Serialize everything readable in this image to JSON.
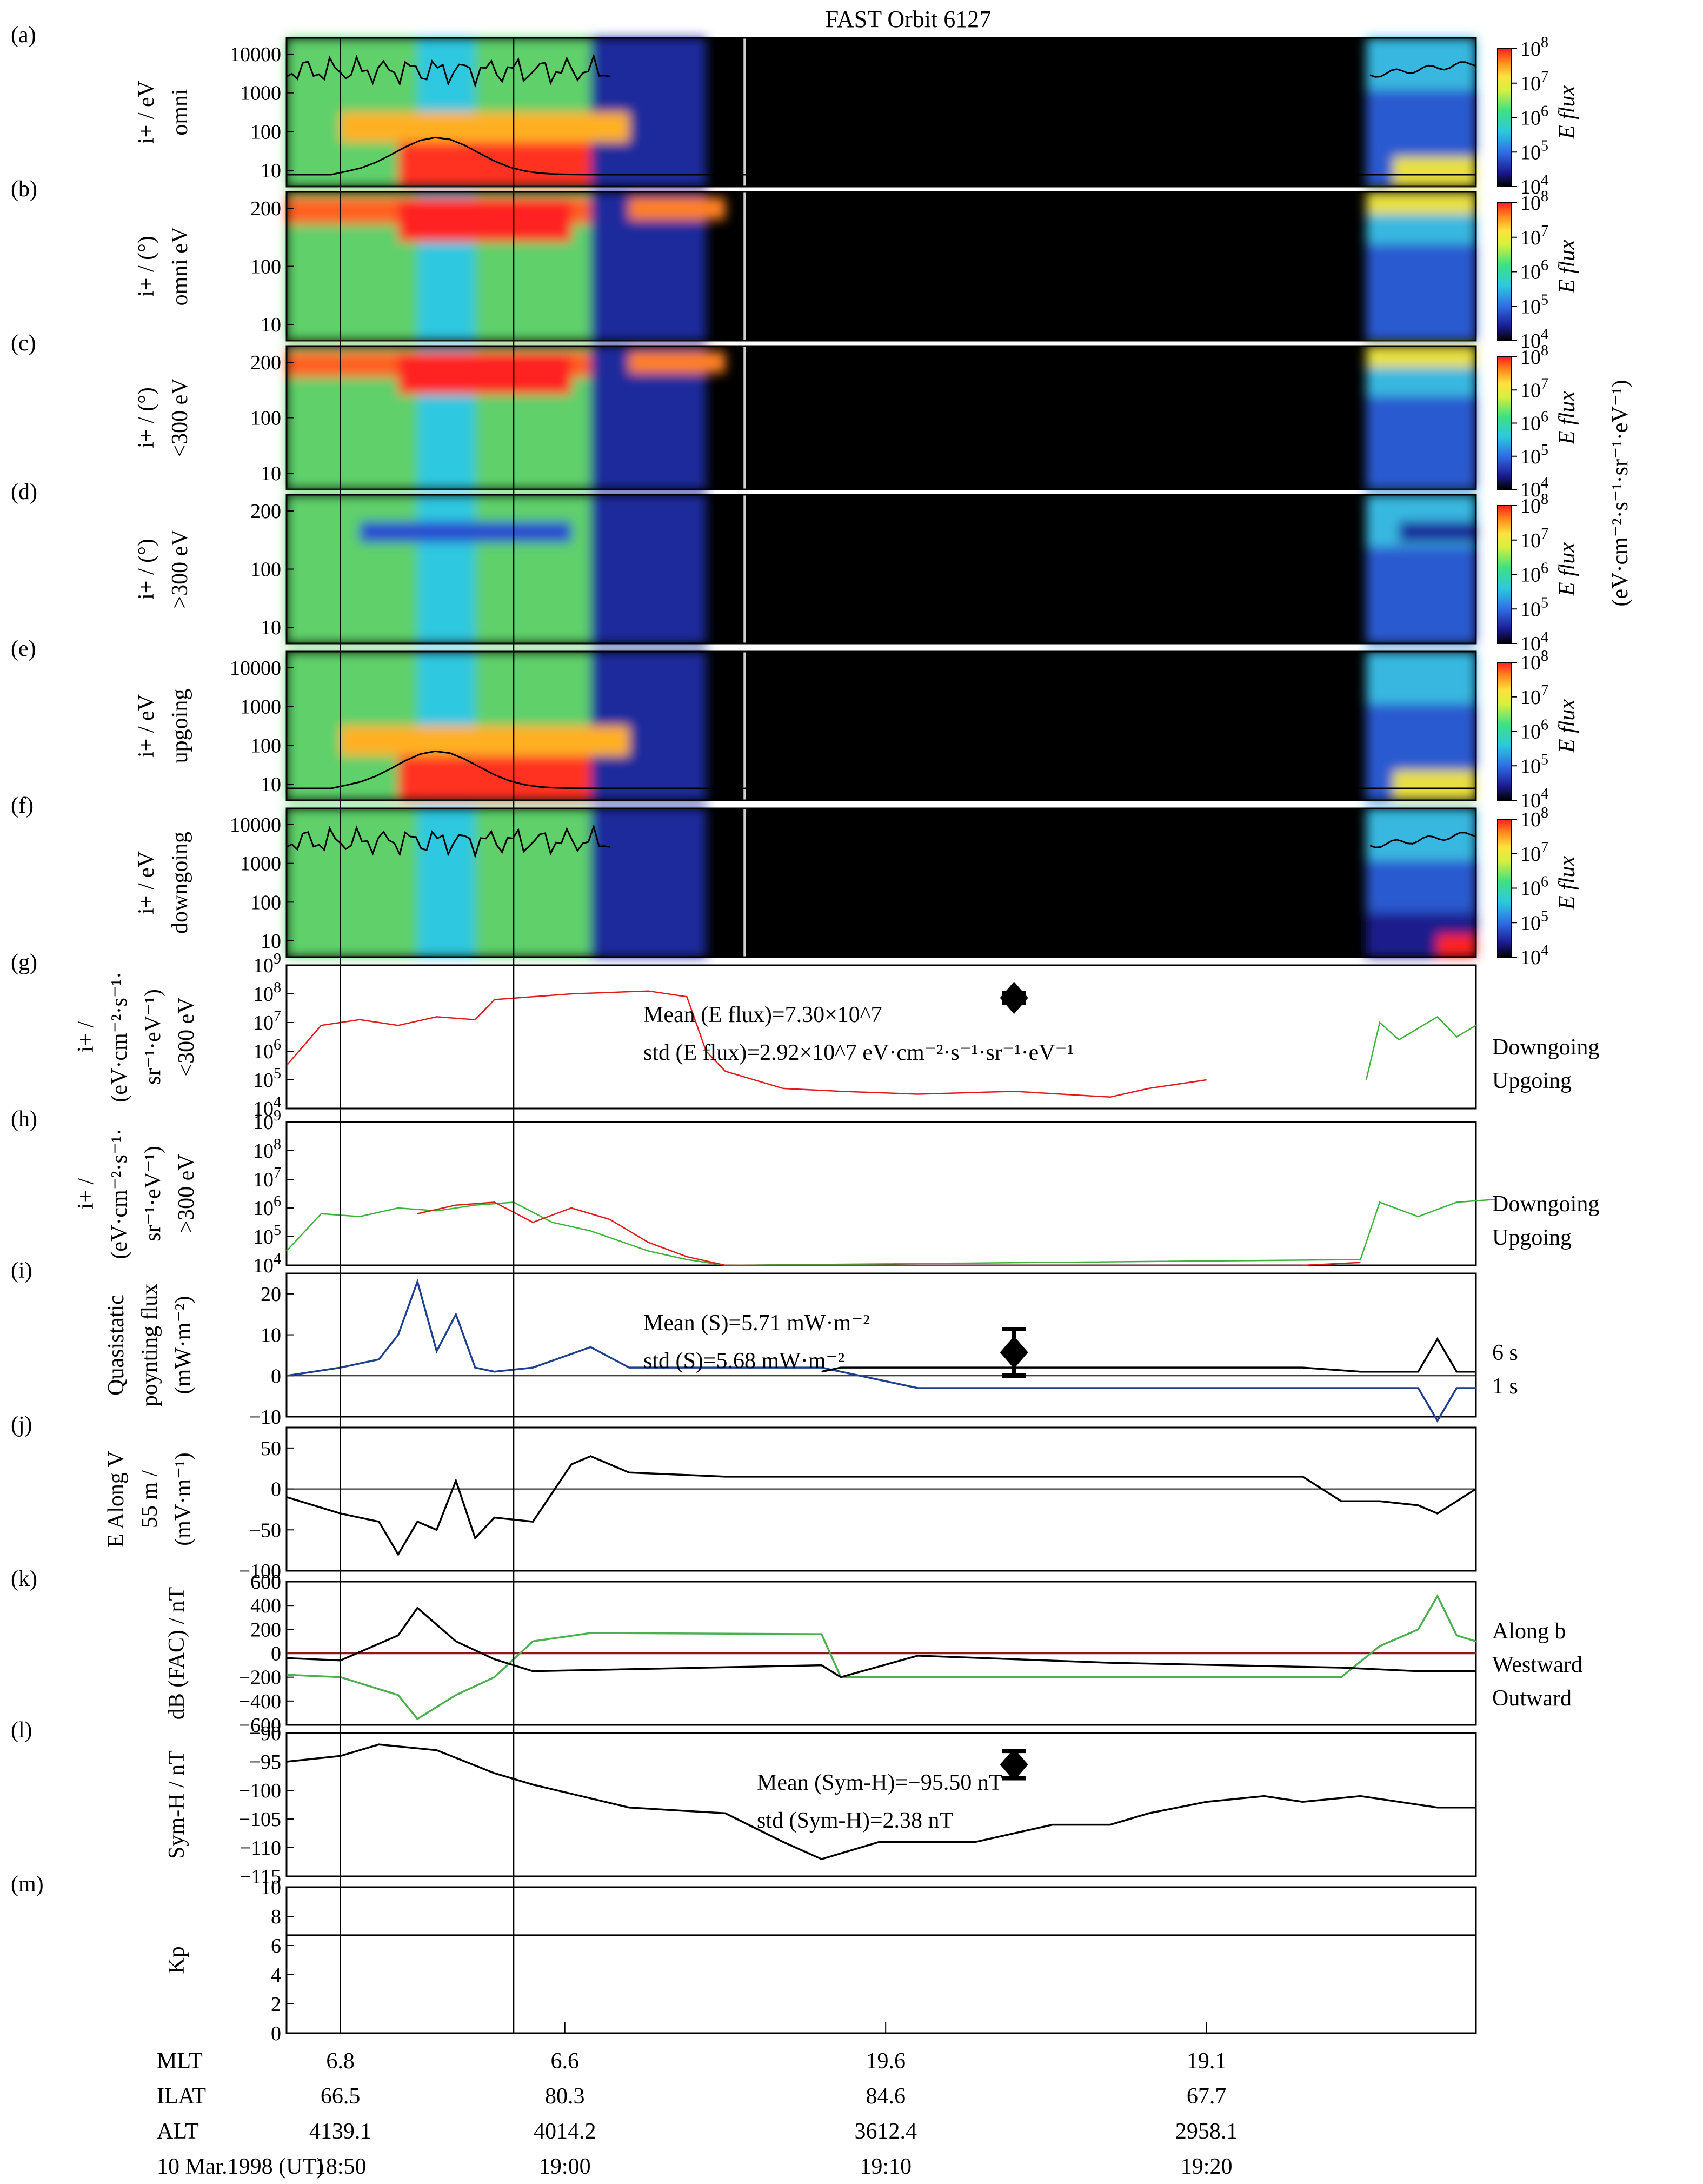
{
  "title": "FAST Orbit 6127",
  "colors": {
    "upgoing": "#e31a1c",
    "downgoing": "#3cb43c",
    "along_b": "#8b1a1a",
    "westward": "#4caf50",
    "outward": "#000000",
    "s6": "#1f3f8f",
    "s1": "#000000",
    "spectro_low": "#000000",
    "spectro_high": "#ff0000"
  },
  "colorbar": {
    "labels": [
      "10^4",
      "10^5",
      "10^6",
      "10^7",
      "10^8"
    ],
    "label": "E flux",
    "units": "(eV·cm⁻²·s⁻¹·sr⁻¹·eV⁻¹)",
    "colors": [
      "#000000",
      "#1a1a8c",
      "#2f6fe0",
      "#2fc8e0",
      "#40e080",
      "#d8f040",
      "#ffe040",
      "#ff8c20",
      "#ff2020"
    ]
  },
  "chart_data": [
    {
      "panel": "(a)",
      "type": "heatmap",
      "ylabel": [
        "i+ / eV",
        "omni"
      ],
      "yticks": [
        "10000",
        "1000",
        "100",
        "10"
      ],
      "colorbar_label": "E flux"
    },
    {
      "panel": "(b)",
      "type": "heatmap",
      "ylabel": [
        "i+ / (°)",
        "omni  eV"
      ],
      "yticks": [
        "200",
        "100",
        "10"
      ],
      "colorbar_label": "E flux"
    },
    {
      "panel": "(c)",
      "type": "heatmap",
      "ylabel": [
        "i+ / (°)",
        "<300 eV"
      ],
      "yticks": [
        "200",
        "100",
        "10"
      ],
      "colorbar_label": "E flux"
    },
    {
      "panel": "(d)",
      "type": "heatmap",
      "ylabel": [
        "i+ / (°)",
        ">300 eV"
      ],
      "yticks": [
        "200",
        "100",
        "10"
      ],
      "colorbar_label": "E flux"
    },
    {
      "panel": "(e)",
      "type": "heatmap",
      "ylabel": [
        "i+ / eV",
        "upgoing"
      ],
      "yticks": [
        "10000",
        "1000",
        "100",
        "10"
      ],
      "colorbar_label": "E flux"
    },
    {
      "panel": "(f)",
      "type": "heatmap",
      "ylabel": [
        "i+ / eV",
        "downgoing"
      ],
      "yticks": [
        "10000",
        "1000",
        "100",
        "10"
      ],
      "colorbar_label": "E flux"
    },
    {
      "panel": "(g)",
      "type": "line",
      "ylabel": [
        "i+ /",
        "(eV·cm⁻²·s⁻¹·",
        "sr⁻¹·eV⁻¹)",
        "<300 eV"
      ],
      "ytick_labels": [
        "10^4",
        "10^5",
        "10^6",
        "10^7",
        "10^8",
        "10^9"
      ],
      "ylim": [
        4,
        9
      ],
      "yscale": "log",
      "annotations": [
        "Mean (E flux)=7.30×10^7",
        "std (E flux)=2.92×10^7 eV·cm⁻²·s⁻¹·sr⁻¹·eV⁻¹"
      ],
      "mean_marker": {
        "x": 19.15,
        "y": 7.86,
        "err": 0.17
      },
      "legend": [
        "Downgoing",
        "Upgoing"
      ],
      "series": [
        {
          "name": "Upgoing",
          "x": [
            18.772,
            18.79,
            18.81,
            18.83,
            18.85,
            18.87,
            18.88,
            18.9,
            18.92,
            18.94,
            18.96,
            18.98,
            18.99,
            19.0,
            19.03,
            19.06,
            19.1,
            19.15,
            19.2,
            19.22,
            19.25
          ],
          "y": [
            5.5,
            6.9,
            7.1,
            6.9,
            7.2,
            7.1,
            7.8,
            7.9,
            8.0,
            8.05,
            8.1,
            7.9,
            6.0,
            5.3,
            4.7,
            4.6,
            4.5,
            4.6,
            4.4,
            4.7,
            5.0
          ]
        },
        {
          "name": "Downgoing",
          "x": [
            19.333,
            19.34,
            19.35,
            19.36,
            19.37,
            19.38,
            19.39
          ],
          "y": [
            5.0,
            7.0,
            6.4,
            6.8,
            7.2,
            6.5,
            6.9
          ]
        }
      ]
    },
    {
      "panel": "(h)",
      "type": "line",
      "ylabel": [
        "i+ /",
        "(eV·cm⁻²·s⁻¹·",
        "sr⁻¹·eV⁻¹)",
        ">300 eV"
      ],
      "ytick_labels": [
        "10^4",
        "10^5",
        "10^6",
        "10^7",
        "10^8",
        "10^9"
      ],
      "ylim": [
        4,
        9
      ],
      "yscale": "log",
      "legend": [
        "Downgoing",
        "Upgoing"
      ],
      "series": [
        {
          "name": "Downgoing",
          "x": [
            18.772,
            18.79,
            18.81,
            18.83,
            18.85,
            18.87,
            18.89,
            18.91,
            18.93,
            18.96,
            18.98,
            19.0,
            19.33,
            19.34,
            19.36,
            19.38,
            19.4
          ],
          "y": [
            4.5,
            5.8,
            5.7,
            6.0,
            5.9,
            6.1,
            6.2,
            5.5,
            5.2,
            4.5,
            4.2,
            4.0,
            4.2,
            6.2,
            5.7,
            6.2,
            6.3
          ]
        },
        {
          "name": "Upgoing",
          "x": [
            18.84,
            18.86,
            18.88,
            18.9,
            18.92,
            18.94,
            18.96,
            18.98,
            19.0,
            19.3,
            19.33
          ],
          "y": [
            5.8,
            6.1,
            6.2,
            5.5,
            6.0,
            5.6,
            4.8,
            4.3,
            4.0,
            4.0,
            4.1
          ]
        }
      ]
    },
    {
      "panel": "(i)",
      "type": "line",
      "ylabel": [
        "Quasistatic",
        "poynting flux",
        "(mW·m⁻²)"
      ],
      "yticks": [
        20,
        10,
        0,
        -10
      ],
      "ylim": [
        -10,
        25
      ],
      "annotations": [
        "Mean (S)=5.71 mW·m⁻²",
        "std (S)=5.68 mW·m⁻²"
      ],
      "mean_marker": {
        "x": 19.15,
        "y": 5.71,
        "err": 5.68
      },
      "legend": [
        "6 s",
        "1 s"
      ],
      "series": [
        {
          "name": "6 s",
          "x": [
            18.772,
            18.8,
            18.82,
            18.83,
            18.84,
            18.85,
            18.86,
            18.87,
            18.88,
            18.9,
            18.93,
            18.95,
            19.0,
            19.05,
            19.1,
            19.2,
            19.28,
            19.3,
            19.33,
            19.36,
            19.37,
            19.38,
            19.39
          ],
          "y": [
            0,
            2,
            4,
            10,
            23,
            6,
            15,
            2,
            1,
            2,
            7,
            2,
            2,
            2,
            -3,
            -3,
            -3,
            -3,
            -3,
            -3,
            -11,
            -3,
            -3
          ]
        },
        {
          "name": "1 s",
          "x": [
            19.05,
            19.06,
            19.1,
            19.2,
            19.3,
            19.33,
            19.36,
            19.37,
            19.38,
            19.39
          ],
          "y": [
            1,
            2,
            2,
            2,
            2,
            1,
            1,
            9,
            1,
            1
          ]
        }
      ]
    },
    {
      "panel": "(j)",
      "type": "line",
      "ylabel": [
        "E Along V",
        "55 m /",
        "(mV·m⁻¹)"
      ],
      "yticks": [
        50,
        0,
        -50,
        -100
      ],
      "ylim": [
        -100,
        75
      ],
      "series": [
        {
          "name": "E",
          "x": [
            18.772,
            18.8,
            18.82,
            18.83,
            18.84,
            18.85,
            18.86,
            18.87,
            18.88,
            18.9,
            18.92,
            18.93,
            18.95,
            19.0,
            19.1,
            19.2,
            19.3,
            19.32,
            19.34,
            19.36,
            19.37,
            19.39
          ],
          "y": [
            -10,
            -30,
            -40,
            -80,
            -40,
            -50,
            10,
            -60,
            -35,
            -40,
            30,
            40,
            20,
            15,
            15,
            15,
            15,
            -15,
            -15,
            -20,
            -30,
            0
          ]
        }
      ]
    },
    {
      "panel": "(k)",
      "type": "line",
      "ylabel": [
        "dB (FAC) / nT"
      ],
      "yticks": [
        600,
        400,
        200,
        0,
        -200,
        -400,
        -600
      ],
      "ylim": [
        -600,
        600
      ],
      "legend": [
        "Along b",
        "Westward",
        "Outward"
      ],
      "series": [
        {
          "name": "Along b",
          "x": [
            18.772,
            19.39
          ],
          "y": [
            0,
            0
          ]
        },
        {
          "name": "Westward",
          "x": [
            18.772,
            18.8,
            18.83,
            18.84,
            18.86,
            18.88,
            18.9,
            18.93,
            19.05,
            19.06,
            19.1,
            19.2,
            19.32,
            19.34,
            19.36,
            19.37,
            19.38,
            19.39
          ],
          "y": [
            -180,
            -200,
            -350,
            -550,
            -350,
            -200,
            100,
            170,
            160,
            -200,
            -200,
            -200,
            -200,
            60,
            200,
            480,
            150,
            100
          ]
        },
        {
          "name": "Outward",
          "x": [
            18.772,
            18.8,
            18.83,
            18.84,
            18.86,
            18.88,
            18.9,
            19.05,
            19.06,
            19.1,
            19.2,
            19.32,
            19.36,
            19.39
          ],
          "y": [
            -40,
            -60,
            150,
            380,
            100,
            -50,
            -150,
            -100,
            -200,
            -20,
            -80,
            -120,
            -150,
            -150
          ]
        }
      ]
    },
    {
      "panel": "(l)",
      "type": "line",
      "ylabel": [
        "Sym-H / nT"
      ],
      "yticks": [
        -90,
        -95,
        -100,
        -105,
        -110,
        -115
      ],
      "ylim": [
        -115,
        -90
      ],
      "annotations": [
        "Mean (Sym-H)=−95.50 nT",
        "std (Sym-H)=2.38 nT"
      ],
      "mean_marker": {
        "x": 19.15,
        "y": -95.5,
        "err": 2.38
      },
      "series": [
        {
          "name": "Sym-H",
          "x": [
            18.772,
            18.8,
            18.82,
            18.85,
            18.88,
            18.9,
            18.95,
            19.0,
            19.03,
            19.05,
            19.08,
            19.1,
            19.13,
            19.17,
            19.2,
            19.22,
            19.25,
            19.28,
            19.3,
            19.33,
            19.37,
            19.39
          ],
          "y": [
            -95,
            -94,
            -92,
            -93,
            -97,
            -99,
            -103,
            -104,
            -109,
            -112,
            -109,
            -109,
            -109,
            -106,
            -106,
            -104,
            -102,
            -101,
            -102,
            -101,
            -103,
            -103
          ]
        }
      ]
    },
    {
      "panel": "(m)",
      "type": "line",
      "ylabel": [
        "Kp"
      ],
      "yticks": [
        10,
        8,
        6,
        4,
        2,
        0
      ],
      "ylim": [
        0,
        10
      ],
      "series": [
        {
          "name": "Kp",
          "x": [
            18.772,
            19.39
          ],
          "y": [
            6.7,
            6.7
          ]
        }
      ]
    }
  ],
  "x_axis": {
    "rows": [
      {
        "label": "MLT",
        "values": [
          "6.8",
          "6.6",
          "19.6",
          "19.1"
        ]
      },
      {
        "label": "ILAT",
        "values": [
          "66.5",
          "80.3",
          "84.6",
          "67.7"
        ]
      },
      {
        "label": "ALT",
        "values": [
          "4139.1",
          "4014.2",
          "3612.4",
          "2958.1"
        ]
      },
      {
        "label": "10 Mar.1998 (UT)",
        "values": [
          "18:50",
          "19:00",
          "19:10",
          "19:20"
        ]
      }
    ]
  }
}
